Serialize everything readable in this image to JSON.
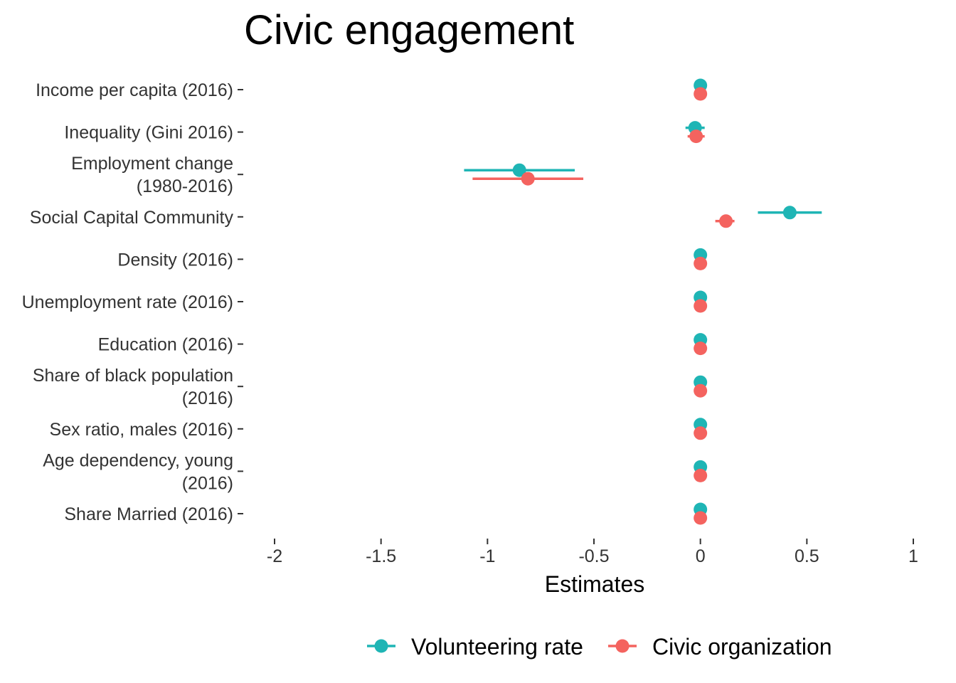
{
  "chart_data": {
    "type": "scatter",
    "subtype": "coefficient-plot",
    "title": "Civic engagement",
    "xlabel": "Estimates",
    "ylabel": "",
    "xlim": [
      -2,
      1
    ],
    "xticks": [
      -2,
      -1.5,
      -1,
      -0.5,
      0,
      0.5,
      1
    ],
    "xtick_labels": [
      "-2",
      "-1.5",
      "-1",
      "-0.5",
      "0",
      "0.5",
      "1"
    ],
    "grid": false,
    "legend_position": "bottom",
    "categories": [
      [
        "Income per capita (2016)"
      ],
      [
        "Inequality (Gini 2016)"
      ],
      [
        "Employment change",
        "(1980-2016)"
      ],
      [
        "Social Capital Community"
      ],
      [
        "Density (2016)"
      ],
      [
        "Unemployment rate (2016)"
      ],
      [
        "Education (2016)"
      ],
      [
        "Share of black population",
        "(2016)"
      ],
      [
        "Sex ratio, males (2016)"
      ],
      [
        "Age dependency, young",
        "(2016)"
      ],
      [
        "Share Married (2016)"
      ]
    ],
    "series": [
      {
        "name": "Volunteering rate",
        "color": "#1FB5B5",
        "estimates": [
          0.0,
          -0.025,
          -0.85,
          0.42,
          0.0,
          0.0,
          0.0,
          0.0,
          0.0,
          0.0,
          0.0
        ],
        "ci_low": [
          0.0,
          -0.07,
          -1.11,
          0.27,
          0.0,
          0.0,
          0.0,
          0.0,
          0.0,
          0.0,
          0.0
        ],
        "ci_high": [
          0.0,
          0.02,
          -0.59,
          0.57,
          0.0,
          0.0,
          0.0,
          0.0,
          0.0,
          0.0,
          0.0
        ]
      },
      {
        "name": "Civic organization",
        "color": "#F4635F",
        "estimates": [
          0.0,
          -0.02,
          -0.81,
          0.12,
          0.0,
          0.0,
          0.0,
          0.0,
          0.0,
          0.0,
          0.0
        ],
        "ci_low": [
          0.0,
          -0.06,
          -1.07,
          0.07,
          0.0,
          0.0,
          0.0,
          0.0,
          0.0,
          0.0,
          0.0
        ],
        "ci_high": [
          0.0,
          0.02,
          -0.55,
          0.16,
          0.0,
          0.0,
          0.0,
          0.0,
          0.0,
          0.0,
          0.0
        ]
      }
    ]
  }
}
